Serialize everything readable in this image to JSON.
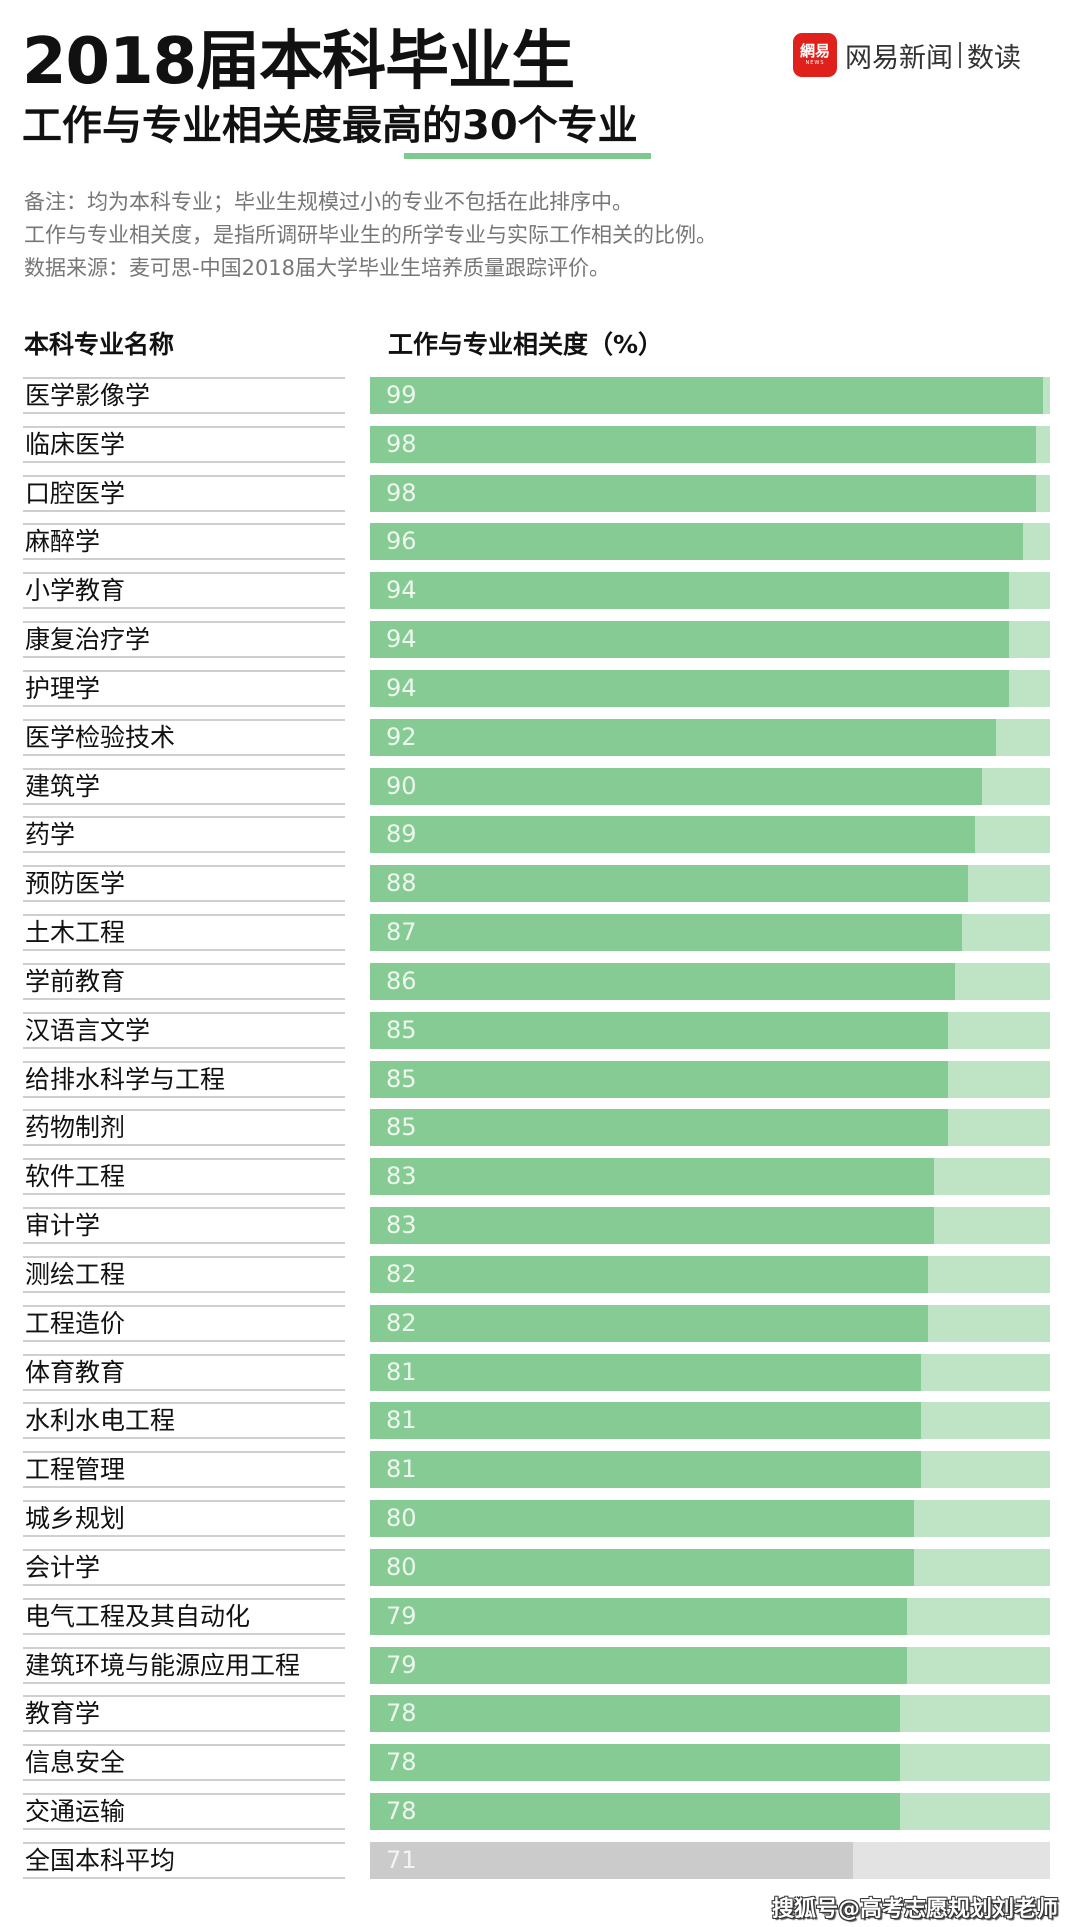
{
  "header": {
    "title": "2018届本科毕业生",
    "subtitle": "工作与专业相关度最高的30个专业",
    "accent_color": "#7fc98e"
  },
  "brand": {
    "badge_text": "網易",
    "badge_sub": "NEWS",
    "name": "网易新闻",
    "section": "数读",
    "badge_color": "#e0201a"
  },
  "notes": [
    "备注：均为本科专业；毕业生规模过小的专业不包括在此排序中。",
    "工作与专业相关度，是指所调研毕业生的所学专业与实际工作相关的比例。",
    "数据来源：麦可思-中国2018届大学毕业生培养质量跟踪评价。"
  ],
  "columns": {
    "name": "本科专业名称",
    "value": "工作与专业相关度（%）"
  },
  "colors": {
    "bar_fill": "#86cb93",
    "bar_track": "#bfe4c5",
    "avg_fill": "#cbcbcb",
    "avg_track": "#e3e3e3"
  },
  "watermark": "搜狐号@高考志愿规划刘老师",
  "chart_data": {
    "type": "bar",
    "orientation": "horizontal",
    "title": "2018届本科毕业生 工作与专业相关度最高的30个专业",
    "xlabel": "工作与专业相关度（%）",
    "ylabel": "本科专业名称",
    "xlim": [
      0,
      100
    ],
    "grid": false,
    "legend": null,
    "categories": [
      "医学影像学",
      "临床医学",
      "口腔医学",
      "麻醉学",
      "小学教育",
      "康复治疗学",
      "护理学",
      "医学检验技术",
      "建筑学",
      "药学",
      "预防医学",
      "土木工程",
      "学前教育",
      "汉语言文学",
      "给排水科学与工程",
      "药物制剂",
      "软件工程",
      "审计学",
      "测绘工程",
      "工程造价",
      "体育教育",
      "水利水电工程",
      "工程管理",
      "城乡规划",
      "会计学",
      "电气工程及其自动化",
      "建筑环境与能源应用工程",
      "教育学",
      "信息安全",
      "交通运输",
      "全国本科平均"
    ],
    "values": [
      99,
      98,
      98,
      96,
      94,
      94,
      94,
      92,
      90,
      89,
      88,
      87,
      86,
      85,
      85,
      85,
      83,
      83,
      82,
      82,
      81,
      81,
      81,
      80,
      80,
      79,
      79,
      78,
      78,
      78,
      71
    ],
    "reference": {
      "label": "全国本科平均",
      "value": 71
    }
  }
}
